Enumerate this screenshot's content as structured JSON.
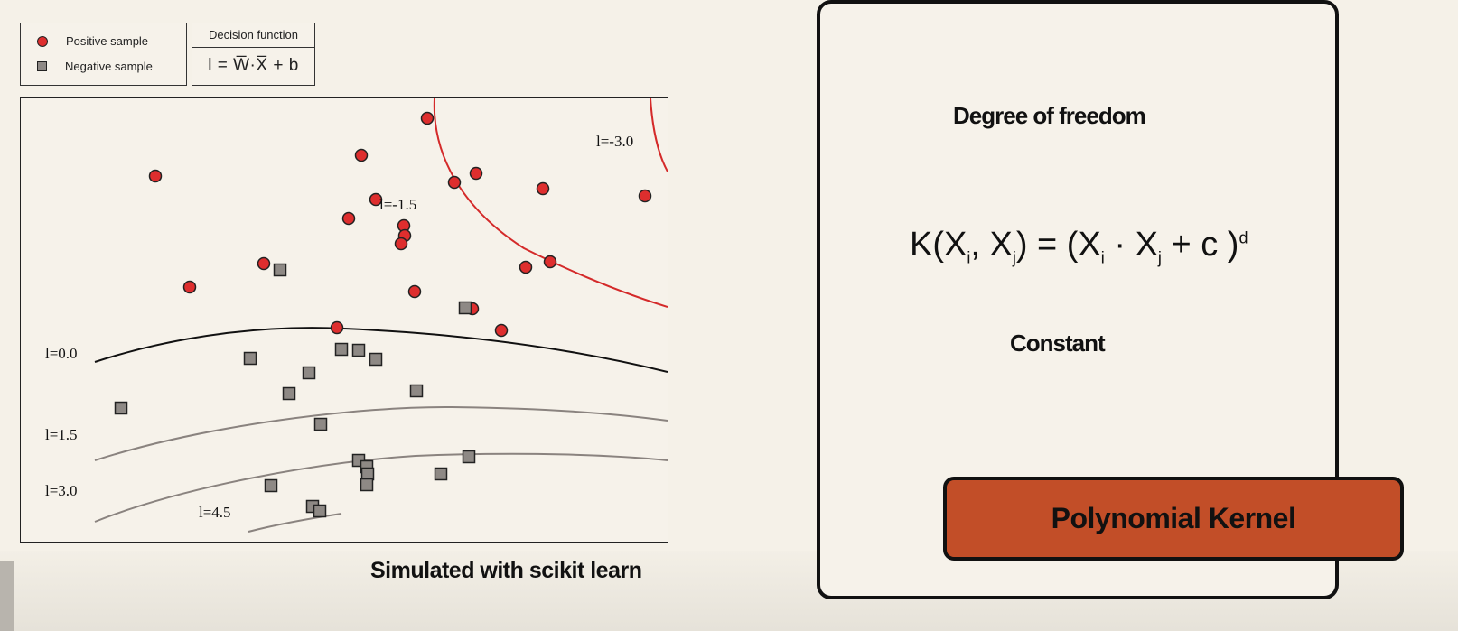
{
  "legend": {
    "positive_label": "Positive sample",
    "negative_label": "Negative sample"
  },
  "decision_function": {
    "title": "Decision function",
    "formula": "l = W̅·X̅ + b"
  },
  "contour_labels": {
    "l_neg3": "l=-3.0",
    "l_neg15": "l=-1.5",
    "l_0": "l=0.0",
    "l_15": "l=1.5",
    "l_3": "l=3.0",
    "l_45": "l=4.5"
  },
  "caption": "Simulated with scikit learn",
  "formula_card": {
    "degree_label": "Degree of freedom",
    "constant_label": "Constant",
    "formula": {
      "lhs": "K(X",
      "i1": "i",
      "comma": ", X",
      "j1": "j",
      "mid": ") = (X",
      "i2": "i",
      "dot": " · X",
      "j2": "j",
      "tail": " + c )",
      "exp": "d"
    }
  },
  "badge": "Polynomial Kernel",
  "colors": {
    "positive": "#de2e2e",
    "negative": "#8e8985",
    "badge": "#c24e28",
    "contour_red": "#d42a2a",
    "contour_black": "#111111",
    "contour_grey": "#8a837f"
  }
}
